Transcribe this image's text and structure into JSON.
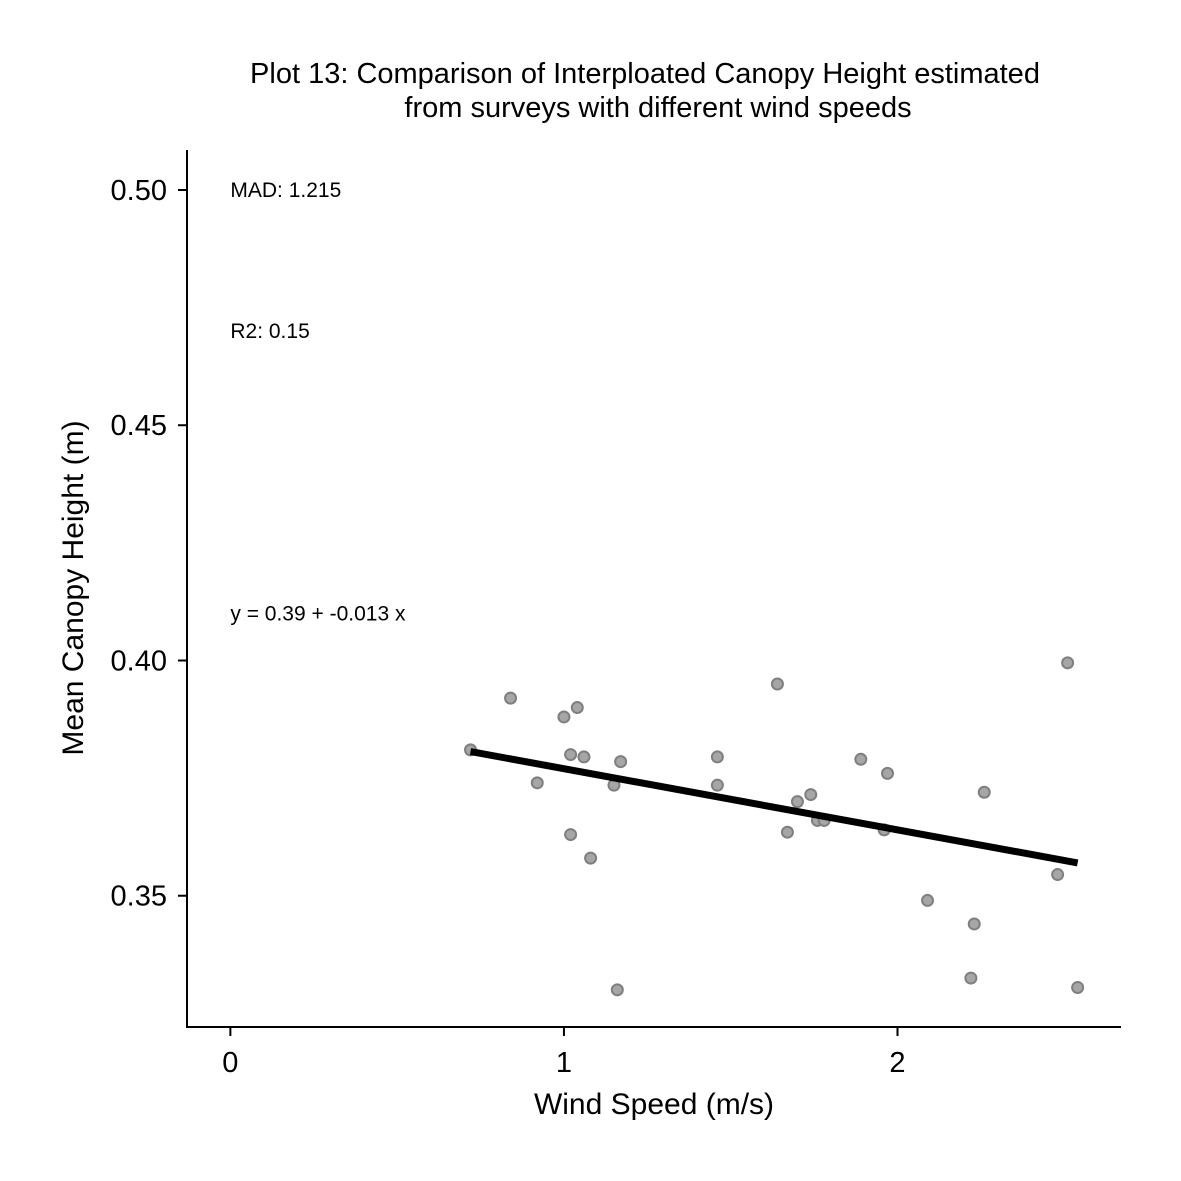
{
  "chart_data": {
    "type": "scatter",
    "title_lines": [
      "Plot 13: Comparison of Interploated Canopy Height estimated",
      "from surveys with different wind speeds"
    ],
    "xlabel": "Wind Speed (m/s)",
    "ylabel": "Mean Canopy Height (m)",
    "xlim": [
      -0.13,
      2.67
    ],
    "ylim": [
      0.3221,
      0.5085
    ],
    "x_ticks": [
      0,
      1,
      2
    ],
    "x_tick_labels": [
      "0",
      "1",
      "2"
    ],
    "y_ticks": [
      0.35,
      0.4,
      0.45,
      0.5
    ],
    "y_tick_labels": [
      "0.35",
      "0.40",
      "0.45",
      "0.50"
    ],
    "grid": false,
    "legend": "none",
    "annotations": [
      {
        "text": "MAD: 1.215",
        "x": 0,
        "y": 0.5
      },
      {
        "text": "R2: 0.15",
        "x": 0,
        "y": 0.47
      },
      {
        "text": "y =  0.39 + -0.013 x",
        "x": 0,
        "y": 0.41
      }
    ],
    "points": [
      {
        "x": 0.72,
        "y": 0.381
      },
      {
        "x": 0.84,
        "y": 0.392
      },
      {
        "x": 0.92,
        "y": 0.374
      },
      {
        "x": 1.0,
        "y": 0.388
      },
      {
        "x": 1.02,
        "y": 0.38
      },
      {
        "x": 1.02,
        "y": 0.363
      },
      {
        "x": 1.04,
        "y": 0.39
      },
      {
        "x": 1.06,
        "y": 0.3795
      },
      {
        "x": 1.08,
        "y": 0.358
      },
      {
        "x": 1.15,
        "y": 0.3735
      },
      {
        "x": 1.16,
        "y": 0.33
      },
      {
        "x": 1.17,
        "y": 0.3785
      },
      {
        "x": 1.46,
        "y": 0.3795
      },
      {
        "x": 1.46,
        "y": 0.3735
      },
      {
        "x": 1.64,
        "y": 0.395
      },
      {
        "x": 1.67,
        "y": 0.3635
      },
      {
        "x": 1.7,
        "y": 0.37
      },
      {
        "x": 1.74,
        "y": 0.3715
      },
      {
        "x": 1.76,
        "y": 0.366
      },
      {
        "x": 1.78,
        "y": 0.366
      },
      {
        "x": 1.89,
        "y": 0.379
      },
      {
        "x": 1.96,
        "y": 0.364
      },
      {
        "x": 1.97,
        "y": 0.376
      },
      {
        "x": 2.09,
        "y": 0.349
      },
      {
        "x": 2.22,
        "y": 0.3325
      },
      {
        "x": 2.23,
        "y": 0.344
      },
      {
        "x": 2.26,
        "y": 0.372
      },
      {
        "x": 2.48,
        "y": 0.3545
      },
      {
        "x": 2.51,
        "y": 0.3995
      },
      {
        "x": 2.54,
        "y": 0.3305
      }
    ],
    "fit_line": {
      "intercept": 0.39,
      "slope": -0.013,
      "x_range": [
        0.72,
        2.54
      ]
    },
    "colors": {
      "points_fill": "#a6a6a6",
      "points_stroke": "#7f7f7f",
      "fit_line": "#000000",
      "axis": "#000000"
    }
  }
}
